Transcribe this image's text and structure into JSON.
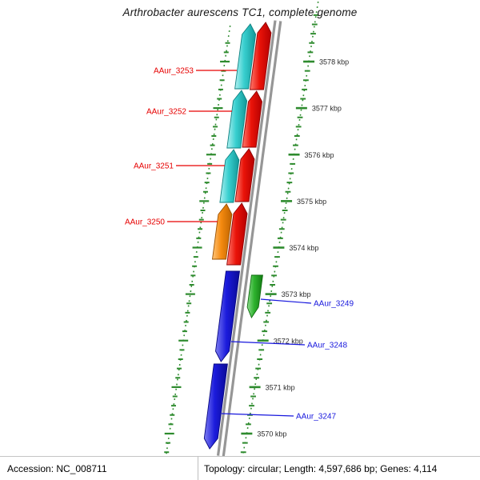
{
  "title": "Arthrobacter aurescens TC1, complete genome",
  "colors": {
    "tick": "#2e8b2e",
    "backbone": "#969696",
    "label_left": "#e60000",
    "label_right": "#1717dd"
  },
  "scale_ticks": [
    "3578 kbp",
    "3577 kbp",
    "3576 kbp",
    "3575 kbp",
    "3574 kbp",
    "3573 kbp",
    "3572 kbp",
    "3571 kbp",
    "3570 kbp"
  ],
  "genes": [
    {
      "id": "r1",
      "label": "",
      "color": "red",
      "direction": "up"
    },
    {
      "id": "r2",
      "label": "",
      "color": "red",
      "direction": "up"
    },
    {
      "id": "r3",
      "label": "AAur_3251",
      "color": "red",
      "direction": "up"
    },
    {
      "id": "r4",
      "label": "",
      "color": "red",
      "direction": "up"
    },
    {
      "id": "c1",
      "label": "AAur_3253",
      "color": "cyan",
      "direction": "up"
    },
    {
      "id": "c2",
      "label": "AAur_3252",
      "color": "cyan",
      "direction": "up"
    },
    {
      "id": "c3",
      "label": "",
      "color": "cyan",
      "direction": "up"
    },
    {
      "id": "o1",
      "label": "AAur_3250",
      "color": "orange",
      "direction": "up"
    },
    {
      "id": "g1",
      "label": "AAur_3249",
      "color": "green",
      "direction": "down"
    },
    {
      "id": "b1",
      "label": "AAur_3248",
      "color": "blue",
      "direction": "down"
    },
    {
      "id": "b2",
      "label": "AAur_3247",
      "color": "blue",
      "direction": "down"
    }
  ],
  "status_bar": {
    "accession": "Accession: NC_008711",
    "summary": "Topology: circular; Length: 4,597,686 bp; Genes: 4,114"
  }
}
